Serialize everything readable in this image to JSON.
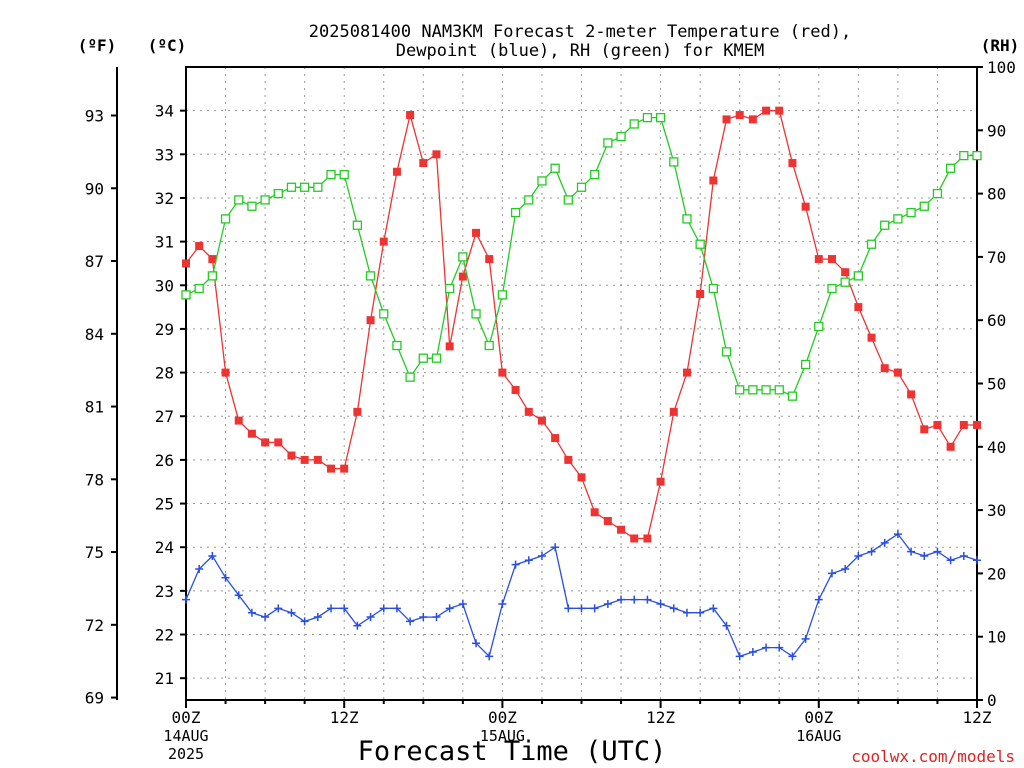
{
  "chart_data": {
    "type": "line",
    "title_line1": "2025081400 NAM3KM Forecast 2-meter Temperature (red),",
    "title_line2": "Dewpoint (blue), RH (green) for KMEM",
    "xlabel": "Forecast Time (UTC)",
    "unit_f": "(ºF)",
    "unit_c": "(ºC)",
    "unit_rh": "(RH)",
    "credit": "coolwx.com/models",
    "x_ticks": [
      {
        "hour": 0,
        "label": "00Z",
        "sub1": "14AUG",
        "sub2": "2025"
      },
      {
        "hour": 12,
        "label": "12Z",
        "sub1": "",
        "sub2": ""
      },
      {
        "hour": 24,
        "label": "00Z",
        "sub1": "15AUG",
        "sub2": ""
      },
      {
        "hour": 36,
        "label": "12Z",
        "sub1": "",
        "sub2": ""
      },
      {
        "hour": 48,
        "label": "00Z",
        "sub1": "16AUG",
        "sub2": ""
      },
      {
        "hour": 60,
        "label": "12Z",
        "sub1": "",
        "sub2": ""
      }
    ],
    "xlim": [
      0,
      60
    ],
    "ylim_c": [
      20.5,
      35
    ],
    "ylim_rh": [
      0,
      100
    ],
    "ticks_c": [
      21,
      22,
      23,
      24,
      25,
      26,
      27,
      28,
      29,
      30,
      31,
      32,
      33,
      34
    ],
    "ticks_f": [
      69,
      72,
      75,
      78,
      81,
      84,
      87,
      90,
      93
    ],
    "ticks_rh": [
      0,
      10,
      20,
      30,
      40,
      50,
      60,
      70,
      80,
      90,
      100
    ],
    "grid": true,
    "series": [
      {
        "name": "Temperature",
        "color": "#ee3333",
        "marker": "filled-square",
        "axis": "celsius",
        "x": [
          0,
          1,
          2,
          3,
          4,
          5,
          6,
          7,
          8,
          9,
          10,
          11,
          12,
          13,
          14,
          15,
          16,
          17,
          18,
          19,
          20,
          21,
          22,
          23,
          24,
          25,
          26,
          27,
          28,
          29,
          30,
          31,
          32,
          33,
          34,
          35,
          36,
          37,
          38,
          39,
          40,
          41,
          42,
          43,
          44,
          45,
          46,
          47,
          48,
          49,
          50,
          51,
          52,
          53,
          54,
          55,
          56,
          57,
          58,
          59,
          60
        ],
        "values": [
          30.5,
          30.9,
          30.6,
          28.0,
          26.9,
          26.6,
          26.4,
          26.4,
          26.1,
          26.0,
          26.0,
          25.8,
          25.8,
          27.1,
          29.2,
          31.0,
          32.6,
          33.9,
          32.8,
          33.0,
          28.6,
          30.2,
          31.2,
          30.6,
          28.0,
          27.6,
          27.1,
          26.9,
          26.5,
          26.0,
          25.6,
          24.8,
          24.6,
          24.4,
          24.2,
          24.2,
          25.5,
          27.1,
          28.0,
          29.8,
          32.4,
          33.8,
          33.9,
          33.8,
          34.0,
          34.0,
          32.8,
          31.8,
          30.6,
          30.6,
          30.3,
          29.5,
          28.8,
          28.1,
          28.0,
          27.5,
          26.7,
          26.8,
          26.3,
          26.8,
          26.8
        ]
      },
      {
        "name": "Dewpoint",
        "color": "#2a4fe0",
        "marker": "plus",
        "axis": "celsius",
        "x": [
          0,
          1,
          2,
          3,
          4,
          5,
          6,
          7,
          8,
          9,
          10,
          11,
          12,
          13,
          14,
          15,
          16,
          17,
          18,
          19,
          20,
          21,
          22,
          23,
          24,
          25,
          26,
          27,
          28,
          29,
          30,
          31,
          32,
          33,
          34,
          35,
          36,
          37,
          38,
          39,
          40,
          41,
          42,
          43,
          44,
          45,
          46,
          47,
          48,
          49,
          50,
          51,
          52,
          53,
          54,
          55,
          56,
          57,
          58,
          59,
          60
        ],
        "values": [
          22.8,
          23.5,
          23.8,
          23.3,
          22.9,
          22.5,
          22.4,
          22.6,
          22.5,
          22.3,
          22.4,
          22.6,
          22.6,
          22.2,
          22.4,
          22.6,
          22.6,
          22.3,
          22.4,
          22.4,
          22.6,
          22.7,
          21.8,
          21.5,
          22.7,
          23.6,
          23.7,
          23.8,
          24.0,
          22.6,
          22.6,
          22.6,
          22.7,
          22.8,
          22.8,
          22.8,
          22.7,
          22.6,
          22.5,
          22.5,
          22.6,
          22.2,
          21.5,
          21.6,
          21.7,
          21.7,
          21.5,
          21.9,
          22.8,
          23.4,
          23.5,
          23.8,
          23.9,
          24.1,
          24.3,
          23.9,
          23.8,
          23.9,
          23.7,
          23.8,
          23.7
        ]
      },
      {
        "name": "RH",
        "color": "#22cc22",
        "marker": "open-square",
        "axis": "rh",
        "x": [
          0,
          1,
          2,
          3,
          4,
          5,
          6,
          7,
          8,
          9,
          10,
          11,
          12,
          13,
          14,
          15,
          16,
          17,
          18,
          19,
          20,
          21,
          22,
          23,
          24,
          25,
          26,
          27,
          28,
          29,
          30,
          31,
          32,
          33,
          34,
          35,
          36,
          37,
          38,
          39,
          40,
          41,
          42,
          43,
          44,
          45,
          46,
          47,
          48,
          49,
          50,
          51,
          52,
          53,
          54,
          55,
          56,
          57,
          58,
          59,
          60
        ],
        "values": [
          64,
          65,
          67,
          76,
          79,
          78,
          79,
          80,
          81,
          81,
          81,
          83,
          83,
          75,
          67,
          61,
          56,
          51,
          54,
          54,
          65,
          70,
          61,
          56,
          64,
          77,
          79,
          82,
          84,
          79,
          81,
          83,
          88,
          89,
          91,
          92,
          92,
          85,
          76,
          72,
          65,
          55,
          49,
          49,
          49,
          49,
          48,
          53,
          59,
          65,
          66,
          67,
          72,
          75,
          76,
          77,
          78,
          80,
          84,
          86,
          86
        ]
      }
    ]
  }
}
